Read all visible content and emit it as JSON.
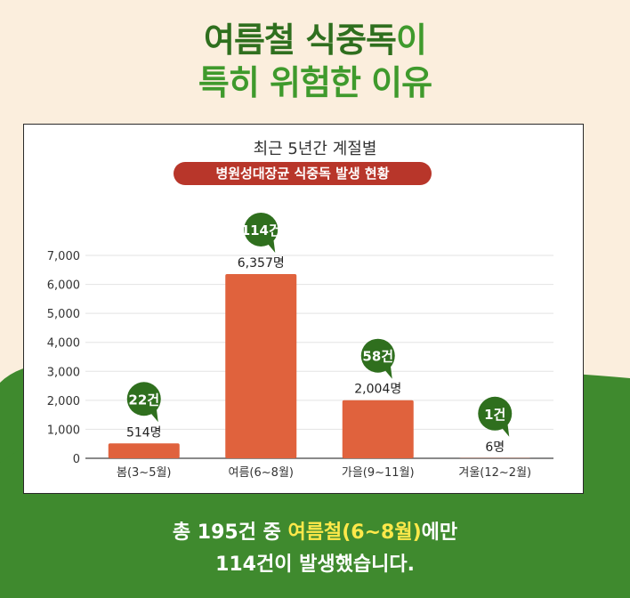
{
  "headline": {
    "line1_a": "여름철 식중독",
    "line1_b": "이",
    "line2": "특히 위험한 이유"
  },
  "card": {
    "title": "최근 5년간 계절별",
    "subtitle": "병원성대장균 식중독 발생 현황"
  },
  "footer": {
    "line1_a": "총 195건 중 ",
    "line1_b": "여름철(6~8월)",
    "line1_c": "에만",
    "line2": "114건이 발생했습니다."
  },
  "colors": {
    "bar": "#e0623d",
    "badge": "#2f6f1e",
    "pill": "#b8362a",
    "ground": "#3f8a2e",
    "background": "#fbeedd"
  },
  "chart_data": {
    "type": "bar",
    "title": "",
    "xlabel": "",
    "ylabel": "",
    "categories": [
      "봄(3~5월)",
      "여름(6~8월)",
      "가을(9~11월)",
      "겨울(12~2월)"
    ],
    "values": [
      514,
      6357,
      2004,
      6
    ],
    "value_labels": [
      "514명",
      "6,357명",
      "2,004명",
      "6명"
    ],
    "case_counts": [
      "22건",
      "114건",
      "58건",
      "1건"
    ],
    "yticks": [
      0,
      1000,
      2000,
      3000,
      4000,
      5000,
      6000,
      7000
    ],
    "ytick_labels": [
      "0",
      "1,000",
      "2,000",
      "3,000",
      "4,000",
      "5,000",
      "6,000",
      "7,000"
    ],
    "ylim": [
      0,
      7000
    ],
    "grid": true
  }
}
